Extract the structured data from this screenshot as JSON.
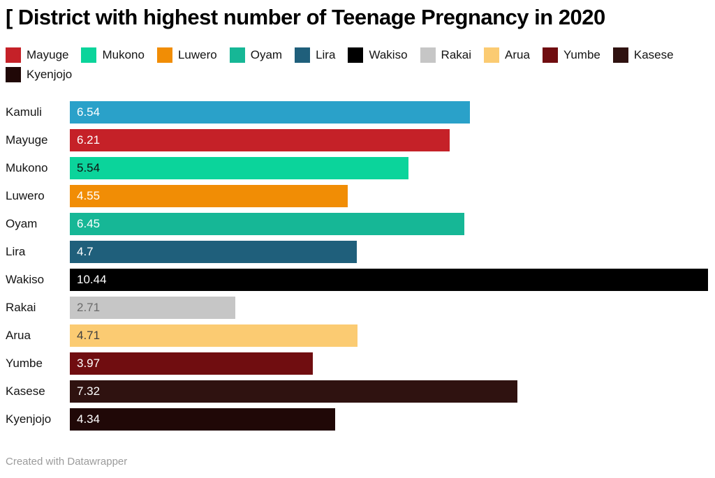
{
  "title": "[ District with highest number of Teenage Pregnancy in 2020",
  "footer": "Created with Datawrapper",
  "chart_data": {
    "type": "bar",
    "orientation": "horizontal",
    "title": "[ District with highest number of Teenage Pregnancy in 2020",
    "xlabel": "",
    "ylabel": "",
    "xlim": [
      0,
      10.44
    ],
    "grid": false,
    "legend_position": "top",
    "legend": [
      {
        "label": "Mayuge",
        "color": "#c52128"
      },
      {
        "label": "Mukono",
        "color": "#0bd49b"
      },
      {
        "label": "Luwero",
        "color": "#f18d05"
      },
      {
        "label": "Oyam",
        "color": "#16b796"
      },
      {
        "label": "Lira",
        "color": "#1f5f7b"
      },
      {
        "label": "Wakiso",
        "color": "#000000"
      },
      {
        "label": "Rakai",
        "color": "#c6c6c6"
      },
      {
        "label": "Arua",
        "color": "#fbcb72"
      },
      {
        "label": "Yumbe",
        "color": "#700d10"
      },
      {
        "label": "Kasese",
        "color": "#2f1210"
      },
      {
        "label": "Kyenjojo",
        "color": "#200807"
      }
    ],
    "categories": [
      "Kamuli",
      "Mayuge",
      "Mukono",
      "Luwero",
      "Oyam",
      "Lira",
      "Wakiso",
      "Rakai",
      "Arua",
      "Yumbe",
      "Kasese",
      "Kyenjojo"
    ],
    "values": [
      6.54,
      6.21,
      5.54,
      4.55,
      6.45,
      4.7,
      10.44,
      2.71,
      4.71,
      3.97,
      7.32,
      4.34
    ],
    "bars": [
      {
        "category": "Kamuli",
        "value": 6.54,
        "value_label": "6.54",
        "color": "#2aa1c9",
        "text_color": "#ffffff"
      },
      {
        "category": "Mayuge",
        "value": 6.21,
        "value_label": "6.21",
        "color": "#c52128",
        "text_color": "#ffffff"
      },
      {
        "category": "Mukono",
        "value": 5.54,
        "value_label": "5.54",
        "color": "#0bd49b",
        "text_color": "#101010"
      },
      {
        "category": "Luwero",
        "value": 4.55,
        "value_label": "4.55",
        "color": "#f18d05",
        "text_color": "#ffffff"
      },
      {
        "category": "Oyam",
        "value": 6.45,
        "value_label": "6.45",
        "color": "#16b796",
        "text_color": "#ffffff"
      },
      {
        "category": "Lira",
        "value": 4.7,
        "value_label": "4.7",
        "color": "#1f5f7b",
        "text_color": "#ffffff"
      },
      {
        "category": "Wakiso",
        "value": 10.44,
        "value_label": "10.44",
        "color": "#000000",
        "text_color": "#ffffff"
      },
      {
        "category": "Rakai",
        "value": 2.71,
        "value_label": "2.71",
        "color": "#c6c6c6",
        "text_color": "#6b6b6b"
      },
      {
        "category": "Arua",
        "value": 4.71,
        "value_label": "4.71",
        "color": "#fbcb72",
        "text_color": "#3f3f3f"
      },
      {
        "category": "Yumbe",
        "value": 3.97,
        "value_label": "3.97",
        "color": "#700d10",
        "text_color": "#ffffff"
      },
      {
        "category": "Kasese",
        "value": 7.32,
        "value_label": "7.32",
        "color": "#2f1210",
        "text_color": "#ffffff"
      },
      {
        "category": "Kyenjojo",
        "value": 4.34,
        "value_label": "4.34",
        "color": "#200807",
        "text_color": "#ffffff"
      }
    ]
  }
}
